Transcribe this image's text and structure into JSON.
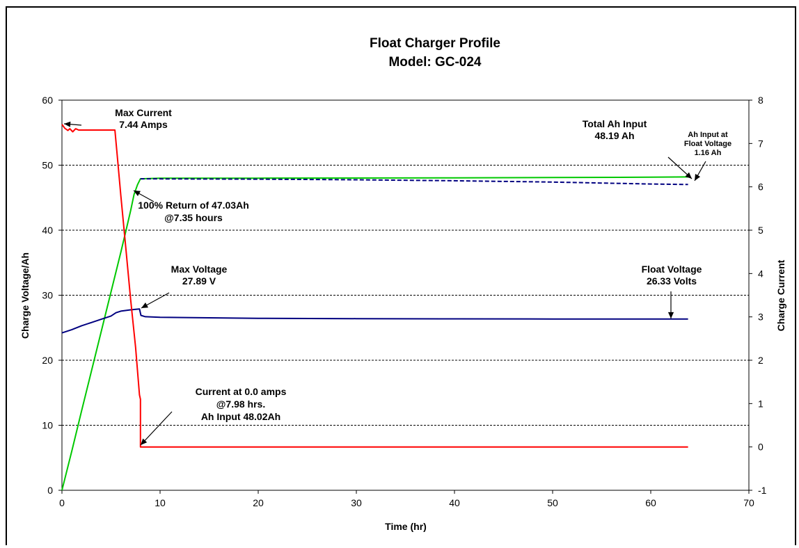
{
  "chart_data": {
    "type": "line",
    "title": "Float Charger Profile",
    "subtitle": "Model: GC-024",
    "xlabel": "Time (hr)",
    "ylabel_left": "Charge Voltage/Ah",
    "ylabel_right": "Charge Current",
    "xlim": [
      0,
      70
    ],
    "ylim_left": [
      0,
      60
    ],
    "ylim_right": [
      -1,
      8
    ],
    "x_ticks": [
      "0",
      "10",
      "20",
      "30",
      "40",
      "50",
      "60",
      "70"
    ],
    "y_left_ticks": [
      "0",
      "10",
      "20",
      "30",
      "40",
      "50",
      "60"
    ],
    "y_right_ticks": [
      "-1",
      "0",
      "1",
      "2",
      "3",
      "4",
      "5",
      "6",
      "7",
      "8"
    ],
    "gridlines": "horizontal dashed at left-axis major ticks",
    "series": [
      {
        "color": "#00c800",
        "axis": "left",
        "points": [
          [
            0,
            0
          ],
          [
            1,
            6
          ],
          [
            2,
            12.2
          ],
          [
            3,
            18.3
          ],
          [
            4,
            24.4
          ],
          [
            5,
            30.5
          ],
          [
            6,
            36.6
          ],
          [
            6.5,
            39.8
          ],
          [
            7,
            43
          ],
          [
            7.35,
            45.5
          ],
          [
            7.7,
            47
          ],
          [
            8,
            47.9
          ],
          [
            10,
            48
          ],
          [
            20,
            48
          ],
          [
            30,
            48.02
          ],
          [
            40,
            48.05
          ],
          [
            50,
            48.1
          ],
          [
            60,
            48.15
          ],
          [
            63.8,
            48.19
          ]
        ]
      },
      {
        "color": "#000080",
        "axis": "left",
        "dashed": true,
        "points": [
          [
            8,
            47.9
          ],
          [
            20,
            47.85
          ],
          [
            30,
            47.75
          ],
          [
            40,
            47.6
          ],
          [
            50,
            47.4
          ],
          [
            60,
            47.1
          ],
          [
            63.8,
            47.03
          ]
        ]
      },
      {
        "color": "#000080",
        "axis": "left",
        "points": [
          [
            0,
            24.2
          ],
          [
            1,
            24.7
          ],
          [
            2,
            25.3
          ],
          [
            3,
            25.8
          ],
          [
            4,
            26.3
          ],
          [
            5,
            26.8
          ],
          [
            5.5,
            27.3
          ],
          [
            6,
            27.55
          ],
          [
            7,
            27.75
          ],
          [
            7.9,
            27.89
          ],
          [
            8.05,
            26.9
          ],
          [
            8.5,
            26.7
          ],
          [
            10,
            26.6
          ],
          [
            20,
            26.45
          ],
          [
            30,
            26.4
          ],
          [
            40,
            26.36
          ],
          [
            50,
            26.34
          ],
          [
            63.8,
            26.33
          ]
        ]
      },
      {
        "color": "#ff0000",
        "axis": "right",
        "points": [
          [
            0,
            7.44
          ],
          [
            0.3,
            7.35
          ],
          [
            0.6,
            7.3
          ],
          [
            0.8,
            7.34
          ],
          [
            1.1,
            7.27
          ],
          [
            1.4,
            7.34
          ],
          [
            1.7,
            7.31
          ],
          [
            2.5,
            7.31
          ],
          [
            5.4,
            7.31
          ],
          [
            5.6,
            6.8
          ],
          [
            6,
            5.8
          ],
          [
            6.5,
            4.6
          ],
          [
            7,
            3.4
          ],
          [
            7.5,
            2.3
          ],
          [
            7.9,
            1.2
          ],
          [
            8,
            1.1
          ],
          [
            8,
            0.0
          ],
          [
            8.2,
            0.0
          ],
          [
            20,
            0.0
          ],
          [
            40,
            0.0
          ],
          [
            63.8,
            0.0
          ]
        ]
      }
    ],
    "annotations": [
      {
        "lines": [
          "Max Current",
          "7.44 Amps"
        ]
      },
      {
        "lines": [
          "Total Ah Input",
          "48.19 Ah"
        ]
      },
      {
        "lines": [
          "Ah Input at",
          "Float Voltage",
          "1.16 Ah"
        ]
      },
      {
        "lines": [
          "100% Return of 47.03Ah",
          "@7.35 hours"
        ]
      },
      {
        "lines": [
          "Max Voltage",
          "27.89 V"
        ]
      },
      {
        "lines": [
          "Float Voltage",
          "26.33 Volts"
        ]
      },
      {
        "lines": [
          "Current at 0.0 amps",
          "@7.98 hrs.",
          "Ah Input 48.02Ah"
        ]
      }
    ]
  }
}
